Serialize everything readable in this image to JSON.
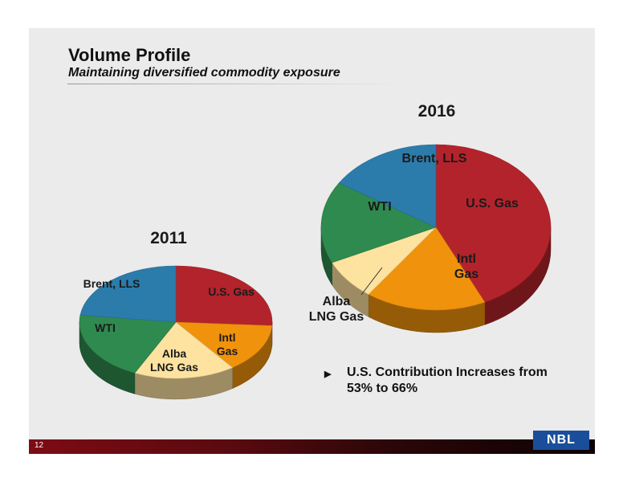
{
  "header": {
    "title": "Volume Profile",
    "subtitle": "Maintaining diversified commodity exposure"
  },
  "colors": {
    "us_gas": "#b3232b",
    "intl_gas": "#f0920c",
    "alba_lng_gas": "#fde2a0",
    "wti": "#2f8a4f",
    "brent_lls": "#2b7cab"
  },
  "chart_data": [
    {
      "type": "pie",
      "title": "2011",
      "categories": [
        "U.S. Gas",
        "Intl Gas",
        "Alba LNG Gas",
        "WTI",
        "Brent, LLS"
      ],
      "values": [
        26,
        14,
        17,
        20,
        23
      ]
    },
    {
      "type": "pie",
      "title": "2016",
      "categories": [
        "U.S. Gas",
        "Intl Gas",
        "Alba LNG Gas",
        "WTI",
        "Brent, LLS"
      ],
      "values": [
        43,
        17,
        8,
        16,
        16
      ]
    }
  ],
  "bullet": {
    "icon": "triangle-right-icon",
    "text": "U.S. Contribution Increases from 53% to 66%"
  },
  "footer": {
    "page_number": "12",
    "logo": "NBL"
  }
}
